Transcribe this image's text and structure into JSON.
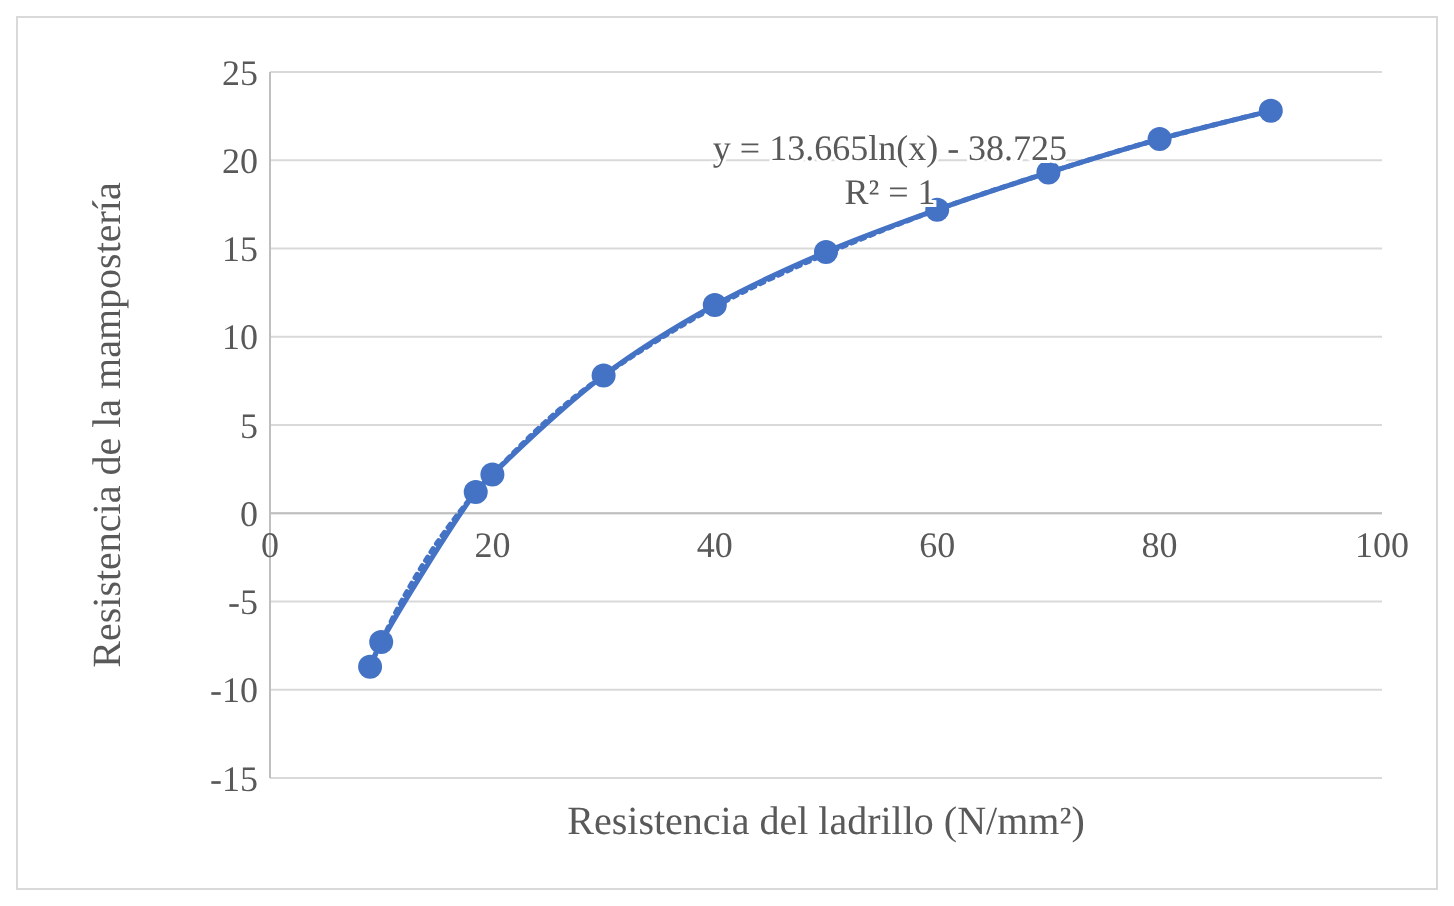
{
  "chart_data": {
    "type": "line",
    "xlabel": "Resistencia del ladrillo (N/mm²)",
    "ylabel": "Resistencia de la mampostería",
    "xlim": [
      0,
      100
    ],
    "xticks": [
      0,
      20,
      40,
      60,
      80,
      100
    ],
    "ylim": [
      -15,
      25
    ],
    "yticks": [
      -15,
      -10,
      -5,
      0,
      5,
      10,
      15,
      20,
      25
    ],
    "grid": "y",
    "series": [
      {
        "color": "#4472c4",
        "marker": "circle",
        "line_style": "solid",
        "x": [
          9,
          10,
          18.5,
          20,
          30,
          40,
          50,
          60,
          70,
          80,
          90
        ],
        "values": [
          -8.7,
          -7.3,
          1.2,
          2.2,
          7.8,
          11.8,
          14.8,
          17.2,
          19.3,
          21.2,
          22.8
        ]
      },
      {
        "type": "line",
        "color": "#4472c4",
        "line_style": "dotted",
        "x": [
          9,
          10,
          12,
          15,
          18.5,
          20,
          25,
          30,
          40,
          50,
          60,
          70,
          80,
          90
        ],
        "values": [
          -8.7,
          -7.3,
          -4.8,
          -1.7,
          1.2,
          2.2,
          5.3,
          7.8,
          11.7,
          14.7,
          17.2,
          19.3,
          21.2,
          22.8
        ]
      }
    ],
    "annotations": [
      "y = 13.665ln(x) - 38.725",
      "R² = 1"
    ]
  }
}
